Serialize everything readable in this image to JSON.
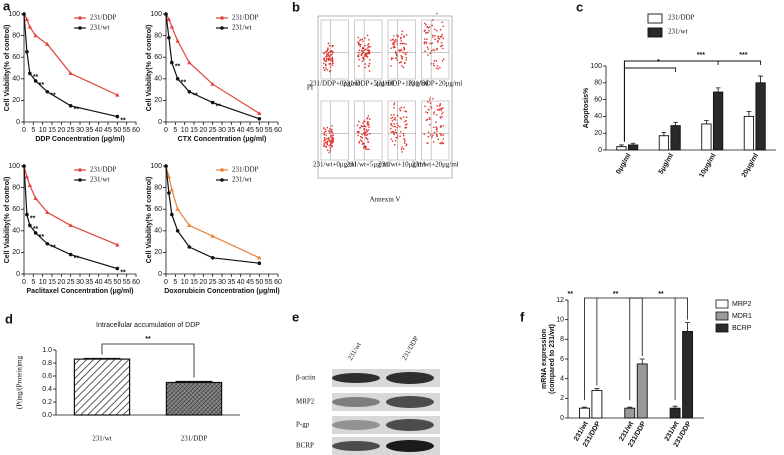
{
  "chart_data": [
    {
      "type": "line",
      "panel": "a",
      "xlabel": "DDP Concentration (μg/ml)",
      "ylabel": "Cell Viability(% of control)",
      "x": [
        0,
        1.5625,
        3.125,
        6.25,
        12.5,
        25,
        50
      ],
      "xlim": [
        0,
        60
      ],
      "xticks": [
        0,
        5,
        10,
        15,
        20,
        25,
        30,
        35,
        40,
        45,
        50,
        55,
        60
      ],
      "ylim": [
        0,
        100
      ],
      "yticks": [
        0,
        20,
        40,
        60,
        80,
        100
      ],
      "series": [
        {
          "name": "231/DDP",
          "color": "#e0443a",
          "values": [
            100,
            95,
            88,
            80,
            72,
            45,
            25
          ]
        },
        {
          "name": "231/wt",
          "color": "#111111",
          "values": [
            100,
            65,
            45,
            38,
            28,
            15,
            5
          ],
          "point_labels": [
            null,
            null,
            "**",
            "**",
            "**",
            "**",
            "**"
          ]
        }
      ]
    },
    {
      "type": "line",
      "xlabel": "CTX Concentration (μg/ml)",
      "ylabel": "Cell Viability(% of control)",
      "x": [
        0,
        1.5625,
        3.125,
        6.25,
        12.5,
        25,
        50
      ],
      "xlim": [
        0,
        60
      ],
      "xticks": [
        0,
        5,
        10,
        15,
        20,
        25,
        30,
        35,
        40,
        45,
        50,
        55,
        60
      ],
      "ylim": [
        0,
        100
      ],
      "yticks": [
        0,
        20,
        40,
        60,
        80,
        100
      ],
      "series": [
        {
          "name": "231/DDP",
          "color": "#e0443a",
          "values": [
            100,
            95,
            88,
            75,
            55,
            35,
            8
          ]
        },
        {
          "name": "231/wt",
          "color": "#111111",
          "values": [
            100,
            78,
            55,
            40,
            28,
            18,
            3
          ],
          "point_labels": [
            null,
            null,
            "**",
            "**",
            "**",
            "**",
            null
          ]
        }
      ]
    },
    {
      "type": "line",
      "xlabel": "Paclitaxel Concentration (μg/ml)",
      "ylabel": "Cell Viability(% of control)",
      "x": [
        0,
        1.5625,
        3.125,
        6.25,
        12.5,
        25,
        50
      ],
      "xlim": [
        0,
        60
      ],
      "xticks": [
        0,
        5,
        10,
        15,
        20,
        25,
        30,
        35,
        40,
        45,
        50,
        55,
        60
      ],
      "ylim": [
        0,
        100
      ],
      "yticks": [
        0,
        20,
        40,
        60,
        80,
        100
      ],
      "series": [
        {
          "name": "231/DDP",
          "color": "#e0443a",
          "values": [
            100,
            90,
            82,
            70,
            57,
            45,
            27
          ]
        },
        {
          "name": "231/wt",
          "color": "#111111",
          "values": [
            100,
            55,
            45,
            38,
            28,
            18,
            5
          ],
          "point_labels": [
            null,
            "**",
            "**",
            "**",
            "**",
            "**",
            "**"
          ]
        }
      ]
    },
    {
      "type": "line",
      "xlabel": "Doxorubicin Concentration (μg/ml)",
      "ylabel": "Cell Viability(% of control)",
      "x": [
        0,
        1.5625,
        3.125,
        6.25,
        12.5,
        25,
        50
      ],
      "xlim": [
        0,
        60
      ],
      "xticks": [
        0,
        5,
        10,
        15,
        20,
        25,
        30,
        35,
        40,
        45,
        50,
        55,
        60
      ],
      "ylim": [
        0,
        100
      ],
      "yticks": [
        0,
        20,
        40,
        60,
        80,
        100
      ],
      "series": [
        {
          "name": "231/DDP",
          "color": "#e8803a",
          "values": [
            100,
            90,
            78,
            60,
            45,
            35,
            15
          ]
        },
        {
          "name": "231/wt",
          "color": "#111111",
          "values": [
            100,
            75,
            55,
            40,
            25,
            15,
            10
          ]
        }
      ]
    },
    {
      "type": "bar",
      "panel": "c",
      "ylabel": "Apoptosis%",
      "categories": [
        "0μg/ml",
        "5μg/ml",
        "10μg/ml",
        "20μg/ml"
      ],
      "ylim": [
        0,
        100
      ],
      "yticks": [
        0,
        20,
        40,
        60,
        80,
        100
      ],
      "significance": [
        null,
        "*",
        "***",
        "***"
      ],
      "series": [
        {
          "name": "231/DDP",
          "color": "#ffffff",
          "values": [
            4,
            17,
            31,
            40
          ],
          "errors": [
            2,
            4,
            4,
            6
          ]
        },
        {
          "name": "231/wt",
          "color": "#2a2a2a",
          "values": [
            6,
            29,
            69,
            80
          ],
          "errors": [
            2,
            4,
            5,
            8
          ]
        }
      ]
    },
    {
      "type": "hatchbar",
      "panel": "d",
      "title": "Intracellular accumulation of DDP",
      "ylabel": "(Pt)ng/(Protein)mg",
      "categories": [
        "231/wt",
        "231/DDP"
      ],
      "values": [
        0.86,
        0.5
      ],
      "errors": [
        0.01,
        0.015
      ],
      "significance": "**",
      "ylim": [
        0,
        1
      ],
      "yticks": [
        {
          "value": 0,
          "label": "0.0"
        },
        0.2,
        0.4,
        0.6,
        0.8,
        {
          "value": 1,
          "label": "1.0"
        }
      ]
    },
    {
      "type": "bar",
      "panel": "f",
      "group_by": "series",
      "ylabel": [
        "mRNA expression",
        "(compared to 231/wt)"
      ],
      "categories": [
        "231/wt",
        "231/DDP"
      ],
      "ylim": [
        0,
        12
      ],
      "yticks": [
        0,
        2,
        4,
        6,
        8,
        10,
        12
      ],
      "significance": [
        "**",
        "**",
        "**"
      ],
      "series": [
        {
          "name": "MRP2",
          "color": "#ffffff",
          "values": [
            1.0,
            2.8
          ],
          "errors": [
            0.1,
            0.2
          ]
        },
        {
          "name": "MDR1",
          "color": "#9a9a9a",
          "values": [
            1.0,
            5.5
          ],
          "errors": [
            0.1,
            0.5
          ]
        },
        {
          "name": "BCRP",
          "color": "#2a2a2a",
          "values": [
            1.0,
            8.8
          ],
          "errors": [
            0.2,
            0.9
          ]
        }
      ]
    }
  ],
  "panel_b": {
    "panel": "b",
    "ylabel": "PI",
    "xlabel": "Annexin V",
    "rows": [
      [
        "231/DDP+0μg/ml",
        "231/DDP+5μg/ml",
        "231/DDP+10μg/ml",
        "231/DDP+20μg/ml"
      ],
      [
        "231/wt+0μg/ml",
        "231/wt+5μg/ml",
        "231/wt+10μg/ml",
        "231/wt+20μg/ml"
      ]
    ]
  },
  "panel_e": {
    "panel": "e",
    "columns": [
      "231/wt",
      "231/DDP"
    ],
    "rows": [
      "β-actin",
      "MRP2",
      "P-gp",
      "BCRP"
    ]
  }
}
